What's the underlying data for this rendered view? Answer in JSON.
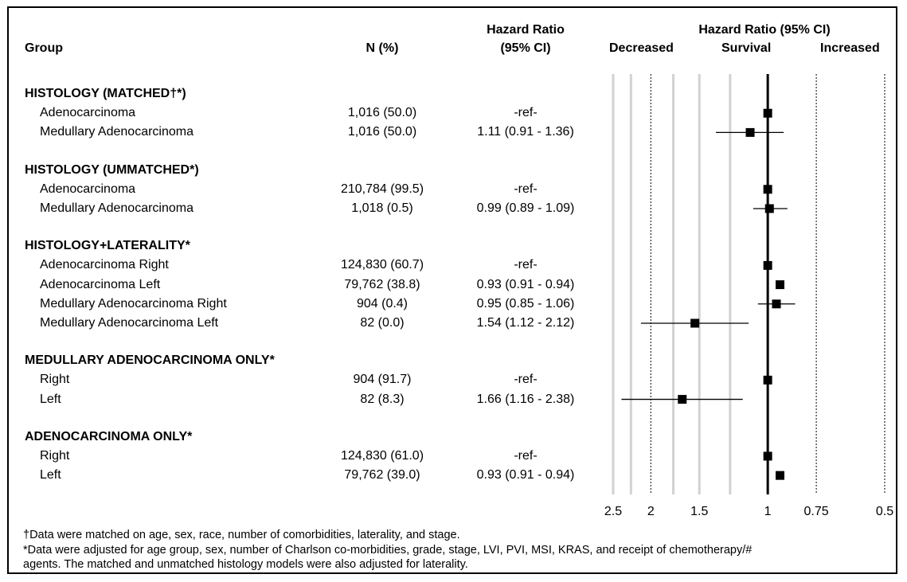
{
  "headers": {
    "group": "Group",
    "n": "N (%)",
    "hr_line1": "Hazard Ratio",
    "hr_line2": "(95% CI)",
    "plot_title": "Hazard Ratio (95% CI)",
    "decreased": "Decreased",
    "survival": "Survival",
    "increased": "Increased"
  },
  "rows": [
    {
      "kind": "section",
      "label": "HISTOLOGY (MATCHED†*)"
    },
    {
      "kind": "item",
      "label": "Adenocarcinoma",
      "n": "1,016 (50.0)",
      "hr_text": "-ref-"
    },
    {
      "kind": "item",
      "label": "Medullary Adenocarcinoma",
      "n": "1,016 (50.0)",
      "hr_text": "1.11 (0.91 - 1.36)"
    },
    {
      "kind": "gap"
    },
    {
      "kind": "section",
      "label": "HISTOLOGY (UMMATCHED*)"
    },
    {
      "kind": "item",
      "label": "Adenocarcinoma",
      "n": "210,784 (99.5)",
      "hr_text": "-ref-"
    },
    {
      "kind": "item",
      "label": "Medullary Adenocarcinoma",
      "n": "1,018 (0.5)",
      "hr_text": "0.99 (0.89 - 1.09)"
    },
    {
      "kind": "gap"
    },
    {
      "kind": "section",
      "label": "HISTOLOGY+LATERALITY*"
    },
    {
      "kind": "item",
      "label": "Adenocarcinoma Right",
      "n": "124,830 (60.7)",
      "hr_text": "-ref-"
    },
    {
      "kind": "item",
      "label": "Adenocarcinoma Left",
      "n": "79,762 (38.8)",
      "hr_text": "0.93 (0.91 - 0.94)"
    },
    {
      "kind": "item",
      "label": "Medullary Adenocarcinoma Right",
      "n": "904 (0.4)",
      "hr_text": "0.95 (0.85 - 1.06)"
    },
    {
      "kind": "item",
      "label": "Medullary Adenocarcinoma Left",
      "n": "82 (0.0)",
      "hr_text": "1.54 (1.12 - 2.12)"
    },
    {
      "kind": "gap"
    },
    {
      "kind": "section",
      "label": "MEDULLARY ADENOCARCINOMA ONLY*"
    },
    {
      "kind": "item",
      "label": "Right",
      "n": "904 (91.7)",
      "hr_text": "-ref-"
    },
    {
      "kind": "item",
      "label": "Left",
      "n": "82 (8.3)",
      "hr_text": "1.66 (1.16 - 2.38)"
    },
    {
      "kind": "gap"
    },
    {
      "kind": "section",
      "label": "ADENOCARCINOMA ONLY*"
    },
    {
      "kind": "item",
      "label": "Right",
      "n": "124,830 (61.0)",
      "hr_text": "-ref-"
    },
    {
      "kind": "item",
      "label": "Left",
      "n": "79,762 (39.0)",
      "hr_text": "0.93 (0.91 - 0.94)"
    }
  ],
  "footnotes": [
    "†Data were matched on age, sex, race, number of comorbidities, laterality, and stage.",
    "*Data were adjusted for age group, sex, number of Charlson co-morbidities, grade, stage, LVI, PVI, MSI, KRAS, and receipt of chemotherapy/#",
    "agents. The matched and unmatched histology models were also adjusted for laterality."
  ],
  "chart_data": {
    "type": "forest",
    "title": "Hazard Ratio (95% CI)",
    "xaxis": {
      "scale": "log",
      "reversed": true,
      "lim": [
        2.5,
        0.5
      ],
      "ticks": [
        2.5,
        2,
        1.5,
        1,
        0.75,
        0.5
      ],
      "tick_labels": [
        "2.5",
        "2",
        "1.5",
        "1",
        "0.75",
        "0.5"
      ],
      "reference_line": 1,
      "dotted_lines": [
        2,
        0.75,
        0.5
      ],
      "gray_lines": [
        2.5,
        2.25,
        1.75,
        1.5,
        1.25
      ],
      "labels": {
        "left": "Decreased",
        "center": "Survival",
        "right": "Increased"
      }
    },
    "series": [
      {
        "row": 1,
        "hr": 1.0,
        "lo": null,
        "hi": null
      },
      {
        "row": 2,
        "hr": 1.11,
        "lo": 0.91,
        "hi": 1.36
      },
      {
        "row": 5,
        "hr": 1.0,
        "lo": null,
        "hi": null
      },
      {
        "row": 6,
        "hr": 0.99,
        "lo": 0.89,
        "hi": 1.09
      },
      {
        "row": 9,
        "hr": 1.0,
        "lo": null,
        "hi": null
      },
      {
        "row": 10,
        "hr": 0.93,
        "lo": 0.91,
        "hi": 0.94
      },
      {
        "row": 11,
        "hr": 0.95,
        "lo": 0.85,
        "hi": 1.06
      },
      {
        "row": 12,
        "hr": 1.54,
        "lo": 1.12,
        "hi": 2.12
      },
      {
        "row": 15,
        "hr": 1.0,
        "lo": null,
        "hi": null
      },
      {
        "row": 16,
        "hr": 1.66,
        "lo": 1.16,
        "hi": 2.38
      },
      {
        "row": 19,
        "hr": 1.0,
        "lo": null,
        "hi": null
      },
      {
        "row": 20,
        "hr": 0.93,
        "lo": 0.91,
        "hi": 0.94
      }
    ]
  }
}
